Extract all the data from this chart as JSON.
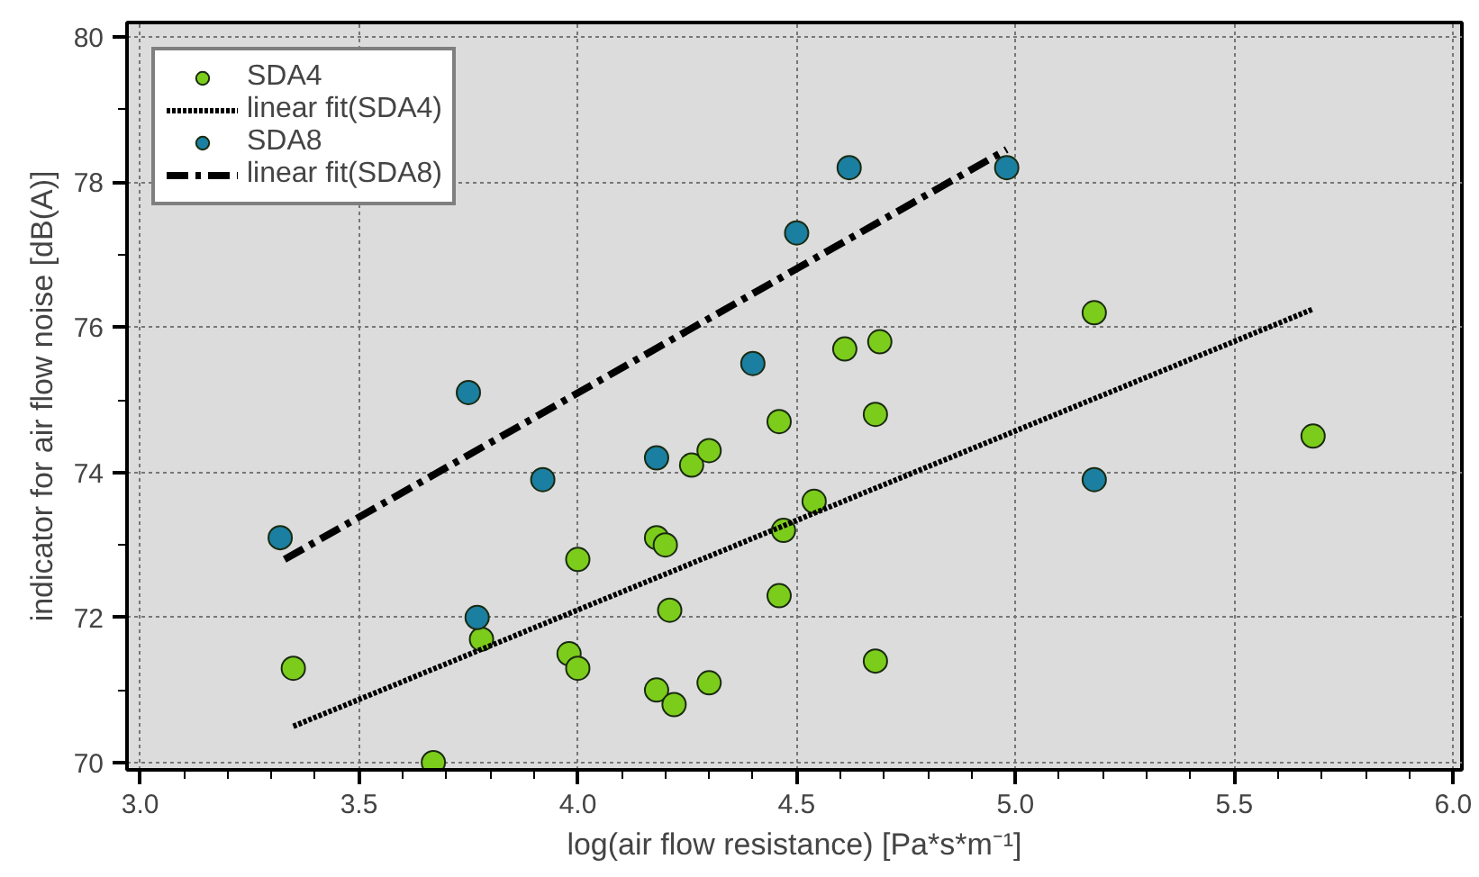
{
  "chart_data": {
    "type": "scatter",
    "xlabel": "log(air flow resistance) [Pa*s*m⁻¹]",
    "ylabel": "indicator for air flow noise [dB(A)]",
    "xlim": [
      2.97,
      6.02
    ],
    "ylim": [
      69.9,
      80.2
    ],
    "xticks": [
      {
        "value": 3.0,
        "label": "3.0"
      },
      {
        "value": 3.5,
        "label": "3.5"
      },
      {
        "value": 4.0,
        "label": "4.0"
      },
      {
        "value": 4.5,
        "label": "4.5"
      },
      {
        "value": 5.0,
        "label": "5.0"
      },
      {
        "value": 5.5,
        "label": "5.5"
      },
      {
        "value": 6.0,
        "label": "6.0"
      }
    ],
    "yticks": [
      70,
      72,
      74,
      76,
      78,
      80
    ],
    "grid": true,
    "legend": "top left",
    "series": [
      {
        "name": "SDA4",
        "marker": "circle",
        "color": "#7ccc1c",
        "x": [
          3.35,
          3.67,
          3.78,
          3.98,
          4.0,
          4.0,
          4.18,
          4.18,
          4.2,
          4.21,
          4.22,
          4.26,
          4.3,
          4.3,
          4.46,
          4.46,
          4.47,
          4.54,
          4.61,
          4.68,
          4.68,
          4.69,
          5.18,
          5.68
        ],
        "values": [
          71.3,
          70.0,
          71.7,
          71.5,
          72.8,
          71.3,
          71.0,
          73.1,
          73.0,
          72.1,
          70.8,
          74.1,
          74.3,
          71.1,
          74.7,
          72.3,
          73.2,
          73.6,
          75.7,
          74.8,
          71.4,
          75.8,
          76.2,
          74.5
        ]
      },
      {
        "name": "linear fit(SDA4)",
        "type": "line",
        "marker": "none",
        "color": "#000000",
        "line_style": "dotted",
        "x": [
          3.35,
          5.68
        ],
        "values": [
          70.5,
          76.25
        ]
      },
      {
        "name": "SDA8",
        "marker": "circle",
        "color": "#1a7fa0",
        "x": [
          3.32,
          3.75,
          3.77,
          3.92,
          4.18,
          4.4,
          4.5,
          4.62,
          4.98,
          5.18
        ],
        "values": [
          73.1,
          75.1,
          72.0,
          73.9,
          74.2,
          75.5,
          77.3,
          78.2,
          78.2,
          73.9
        ]
      },
      {
        "name": "linear fit(SDA8)",
        "type": "line",
        "marker": "none",
        "color": "#000000",
        "line_style": "dashdot",
        "x": [
          3.33,
          4.98
        ],
        "values": [
          72.8,
          78.45
        ]
      }
    ]
  }
}
